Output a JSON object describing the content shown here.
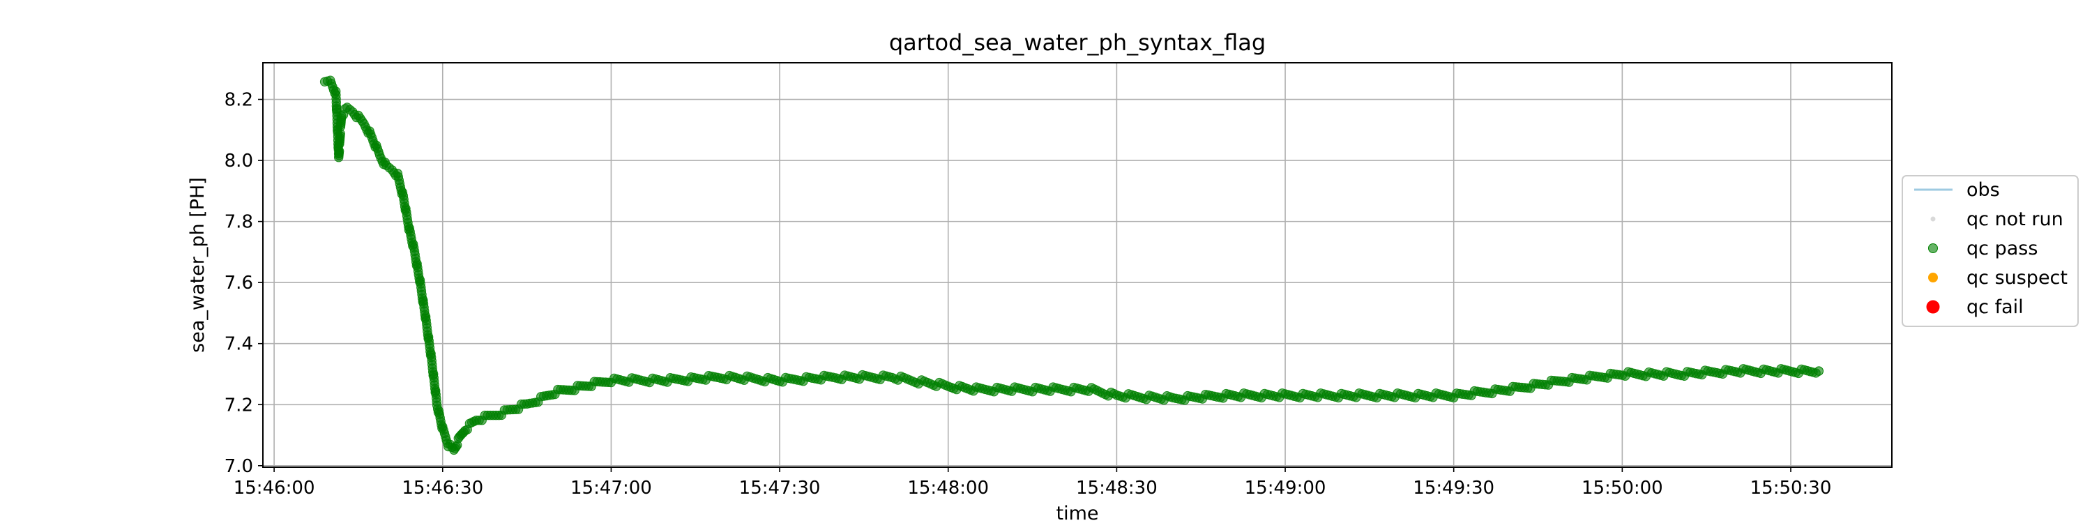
{
  "chart_data": {
    "type": "scatter",
    "title": "qartod_sea_water_ph_syntax_flag",
    "xlabel": "time",
    "ylabel": "sea_water_ph [PH]",
    "xlim": [
      "15:45:58",
      "15:50:48"
    ],
    "ylim": [
      6.995,
      8.32
    ],
    "xticks": [
      "15:46:00",
      "15:46:30",
      "15:47:00",
      "15:47:30",
      "15:48:00",
      "15:48:30",
      "15:49:00",
      "15:49:30",
      "15:50:00",
      "15:50:30"
    ],
    "yticks": [
      7.0,
      7.2,
      7.4,
      7.6,
      7.8,
      8.0,
      8.2
    ],
    "ytick_labels": [
      "7.0",
      "7.2",
      "7.4",
      "7.6",
      "7.8",
      "8.0",
      "8.2"
    ],
    "grid": true,
    "legend_position": "right, outside plot",
    "legend": [
      {
        "label": "obs",
        "kind": "line",
        "color": "#9ecae1"
      },
      {
        "label": "qc not run",
        "kind": "point",
        "color": "#d9d9d9"
      },
      {
        "label": "qc pass",
        "kind": "point",
        "color": "#008000"
      },
      {
        "label": "qc suspect",
        "kind": "point",
        "color": "#ffa500"
      },
      {
        "label": "qc fail",
        "kind": "point",
        "color": "#ff0000"
      }
    ],
    "series": [
      {
        "name": "obs",
        "flag": "qc pass",
        "points": [
          [
            "15:46:09",
            8.25
          ],
          [
            "15:46:10",
            8.26
          ],
          [
            "15:46:11",
            8.22
          ],
          [
            "15:46:11.5",
            8.01
          ],
          [
            "15:46:12",
            8.15
          ],
          [
            "15:46:13",
            8.17
          ],
          [
            "15:46:14",
            8.16
          ],
          [
            "15:46:15",
            8.14
          ],
          [
            "15:46:16",
            8.12
          ],
          [
            "15:46:17",
            8.09
          ],
          [
            "15:46:18",
            8.05
          ],
          [
            "15:46:19",
            8.01
          ],
          [
            "15:46:20",
            7.98
          ],
          [
            "15:46:21",
            7.97
          ],
          [
            "15:46:22",
            7.95
          ],
          [
            "15:46:23",
            7.88
          ],
          [
            "15:46:24",
            7.78
          ],
          [
            "15:46:25",
            7.7
          ],
          [
            "15:46:26",
            7.6
          ],
          [
            "15:46:27",
            7.48
          ],
          [
            "15:46:28",
            7.35
          ],
          [
            "15:46:29",
            7.2
          ],
          [
            "15:46:30",
            7.12
          ],
          [
            "15:46:31",
            7.07
          ],
          [
            "15:46:32",
            7.05
          ],
          [
            "15:46:33",
            7.09
          ],
          [
            "15:46:34",
            7.12
          ],
          [
            "15:46:36",
            7.15
          ],
          [
            "15:46:40",
            7.17
          ],
          [
            "15:46:45",
            7.2
          ],
          [
            "15:46:50",
            7.24
          ],
          [
            "15:46:55",
            7.26
          ],
          [
            "15:47:00",
            7.28
          ],
          [
            "15:47:10",
            7.28
          ],
          [
            "15:47:20",
            7.29
          ],
          [
            "15:47:30",
            7.28
          ],
          [
            "15:47:40",
            7.29
          ],
          [
            "15:47:50",
            7.29
          ],
          [
            "15:48:00",
            7.26
          ],
          [
            "15:48:05",
            7.25
          ],
          [
            "15:48:15",
            7.25
          ],
          [
            "15:48:25",
            7.25
          ],
          [
            "15:48:30",
            7.23
          ],
          [
            "15:48:40",
            7.22
          ],
          [
            "15:48:50",
            7.23
          ],
          [
            "15:49:00",
            7.23
          ],
          [
            "15:49:10",
            7.23
          ],
          [
            "15:49:20",
            7.23
          ],
          [
            "15:49:30",
            7.23
          ],
          [
            "15:49:40",
            7.25
          ],
          [
            "15:49:50",
            7.28
          ],
          [
            "15:50:00",
            7.3
          ],
          [
            "15:50:10",
            7.3
          ],
          [
            "15:50:20",
            7.31
          ],
          [
            "15:50:35",
            7.31
          ]
        ]
      }
    ]
  }
}
